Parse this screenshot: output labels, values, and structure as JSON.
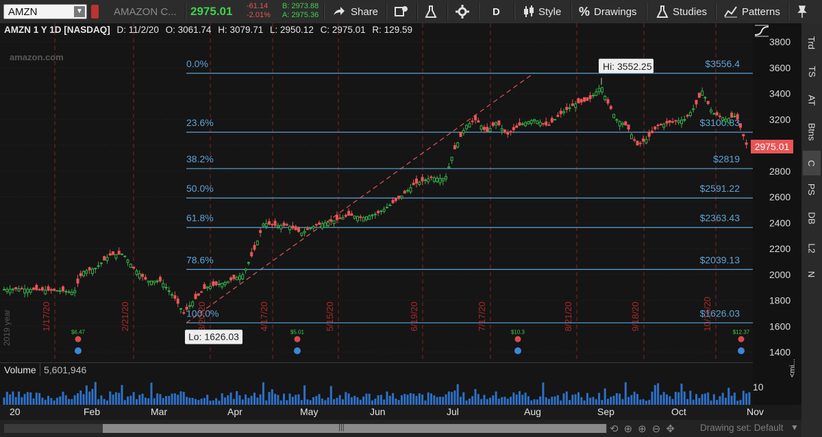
{
  "toolbar": {
    "symbol": "AMZN",
    "company": "AMAZON C...",
    "last_price": "2975.01",
    "net_change": "-61.14",
    "pct_change": "-2.01%",
    "bid": "B: 2973.88",
    "ask": "A: 2975.36",
    "share_label": "Share",
    "period_label": "D",
    "style_label": "Style",
    "drawings_label": "Drawings",
    "studies_label": "Studies",
    "patterns_label": "Patterns"
  },
  "info": {
    "title": "AMZN 1 Y 1D [NASDAQ]",
    "date": "D: 11/2/20",
    "open": "O: 3061.74",
    "high": "H: 3079.71",
    "low": "L: 2950.12",
    "close": "C: 2975.01",
    "range": "R: 129.59"
  },
  "watermark": "amazon.com",
  "year_label": "2019 year",
  "price_axis": [
    "3800",
    "3600",
    "3400",
    "3200",
    "3000",
    "2800",
    "2600",
    "2400",
    "2200",
    "2000",
    "1800",
    "1600",
    "1400"
  ],
  "last_price_badge": "2975.01",
  "fib_levels": [
    {
      "pct": "0.0%",
      "price": "$3556.4"
    },
    {
      "pct": "23.6%",
      "price": "$3100.83"
    },
    {
      "pct": "38.2%",
      "price": "$2819"
    },
    {
      "pct": "50.0%",
      "price": "$2591.22"
    },
    {
      "pct": "61.8%",
      "price": "$2363.43"
    },
    {
      "pct": "78.6%",
      "price": "$2039.13"
    },
    {
      "pct": "100.0%",
      "price": "$1626.03"
    }
  ],
  "hi_label": "Hi: 3552.25",
  "lo_label": "Lo: 1626.03",
  "event_dates": [
    "1/17/20",
    "2/21/20",
    "3/20/20",
    "4/17/20",
    "5/15/20",
    "6/19/20",
    "7/17/20",
    "8/21/20",
    "9/18/20",
    "10/16/20"
  ],
  "earnings": [
    "$6.47",
    "$5.01",
    "$10.3",
    "$12.37"
  ],
  "volume": {
    "label": "Volume",
    "value": "5,601,946",
    "axis": "10",
    "side_label": "<mi..."
  },
  "months": [
    "20",
    "Feb",
    "Mar",
    "Apr",
    "May",
    "Jun",
    "Jul",
    "Aug",
    "Sep",
    "Oct",
    "Nov"
  ],
  "drawing_set": "Drawing set: Default",
  "side_tabs": [
    "Trd",
    "TS",
    "AT",
    "Btns",
    "C",
    "PS",
    "DB",
    "L2",
    "N"
  ],
  "colors": {
    "up": "#35b24a",
    "down": "#e95556",
    "fib": "#5ea3d6",
    "accent_green": "#3fd14c"
  }
}
